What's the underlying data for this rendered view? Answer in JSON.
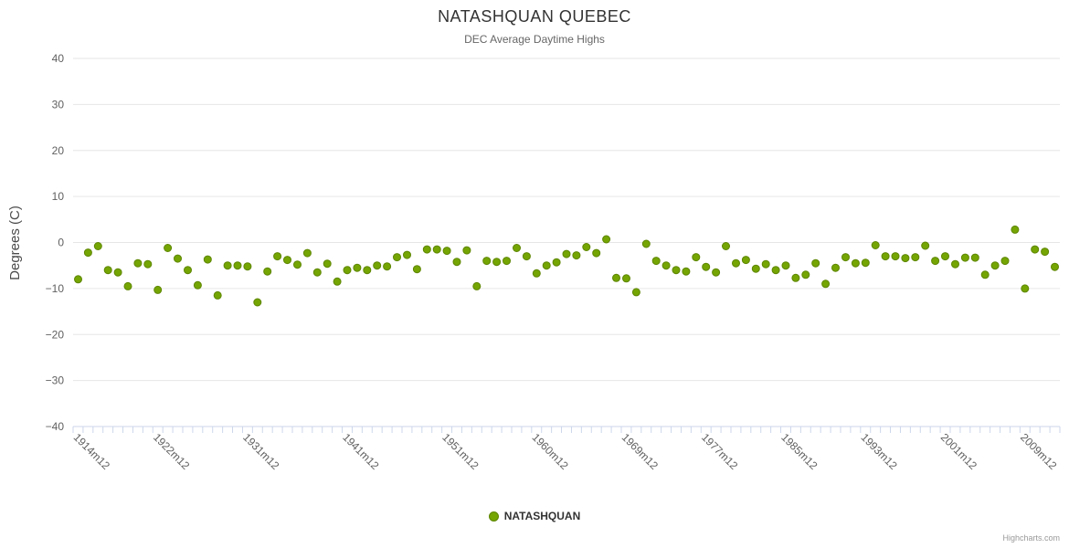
{
  "credits": {
    "text": "Highcharts.com"
  },
  "chart_data": {
    "type": "scatter",
    "title": "NATASHQUAN QUEBEC",
    "subtitle": "DEC Average Daytime Highs",
    "xlabel": "",
    "ylabel": "Degrees (C)",
    "ylim": [
      -40,
      40
    ],
    "ytick_step": 10,
    "grid": true,
    "legend_position": "bottom",
    "series_color": "#74A502",
    "series_stroke": "#5D8500",
    "y_tick_labels": [
      "40",
      "30",
      "20",
      "10",
      "0",
      "−10",
      "−20",
      "−30",
      "−40"
    ],
    "x_tick_labels": [
      "1914m12",
      "1922m12",
      "1931m12",
      "1941m12",
      "1951m12",
      "1960m12",
      "1969m12",
      "1977m12",
      "1985m12",
      "1993m12",
      "2001m12",
      "2009m12"
    ],
    "categories": [
      "1914m12",
      "1915m12",
      "1916m12",
      "1917m12",
      "1918m12",
      "1919m12",
      "1920m12",
      "1921m12",
      "1922m12",
      "1923m12",
      "1924m12",
      "1925m12",
      "1926m12",
      "1927m12",
      "1928m12",
      "1929m12",
      "1930m12",
      "1931m12",
      "1932m12",
      "1933m12",
      "1934m12",
      "1935m12",
      "1936m12",
      "1937m12",
      "1938m12",
      "1939m12",
      "1940m12",
      "1941m12",
      "1942m12",
      "1943m12",
      "1944m12",
      "1945m12",
      "1946m12",
      "1947m12",
      "1948m12",
      "1949m12",
      "1950m12",
      "1951m12",
      "1952m12",
      "1953m12",
      "1954m12",
      "1955m12",
      "1956m12",
      "1957m12",
      "1958m12",
      "1959m12",
      "1960m12",
      "1961m12",
      "1962m12",
      "1963m12",
      "1964m12",
      "1965m12",
      "1966m12",
      "1967m12",
      "1968m12",
      "1969m12",
      "1970m12",
      "1971m12",
      "1972m12",
      "1973m12",
      "1974m12",
      "1975m12",
      "1976m12",
      "1977m12",
      "1978m12",
      "1979m12",
      "1980m12",
      "1981m12",
      "1982m12",
      "1983m12",
      "1984m12",
      "1985m12",
      "1986m12",
      "1987m12",
      "1988m12",
      "1989m12",
      "1990m12",
      "1991m12",
      "1992m12",
      "1993m12",
      "1994m12",
      "1995m12",
      "1996m12",
      "1997m12",
      "1998m12",
      "1999m12",
      "2000m12",
      "2001m12",
      "2002m12",
      "2003m12",
      "2004m12",
      "2005m12",
      "2006m12",
      "2007m12",
      "2008m12",
      "2009m12",
      "2010m12",
      "2011m12",
      "2012m12"
    ],
    "series": [
      {
        "name": "NATASHQUAN",
        "values": [
          -8,
          -2.2,
          -0.8,
          -6,
          -6.5,
          -9.5,
          -4.5,
          -4.7,
          -10.3,
          -1.2,
          -3.5,
          -6,
          -9.3,
          -3.7,
          -11.5,
          -5,
          -5,
          -5.2,
          -13,
          -6.3,
          -3,
          -3.8,
          -4.8,
          -2.3,
          -6.5,
          -4.6,
          -8.5,
          -6,
          -5.5,
          -6,
          -5,
          -5.2,
          -3.2,
          -2.7,
          -5.8,
          -1.5,
          -1.5,
          -1.8,
          -4.2,
          -1.7,
          -9.5,
          -4,
          -4.2,
          -4,
          -1.2,
          -3,
          -6.7,
          -5,
          -4.3,
          -2.5,
          -2.8,
          -1,
          -2.3,
          0.7,
          -7.7,
          -7.8,
          -10.8,
          -0.3,
          -4,
          -5,
          -6,
          -6.3,
          -3.2,
          -5.3,
          -6.5,
          -0.8,
          -4.5,
          -3.8,
          -5.7,
          -4.7,
          -6,
          -5,
          -7.7,
          -7,
          -4.5,
          -9,
          -5.5,
          -3.2,
          -4.5,
          -4.4,
          -0.6,
          -3,
          -3,
          -3.4,
          -3.2,
          -0.7,
          -4,
          -3,
          -4.7,
          -3.3,
          -3.3,
          -7,
          -5,
          -4,
          2.8,
          -10,
          -1.5,
          -2,
          -5.3
        ]
      }
    ]
  }
}
